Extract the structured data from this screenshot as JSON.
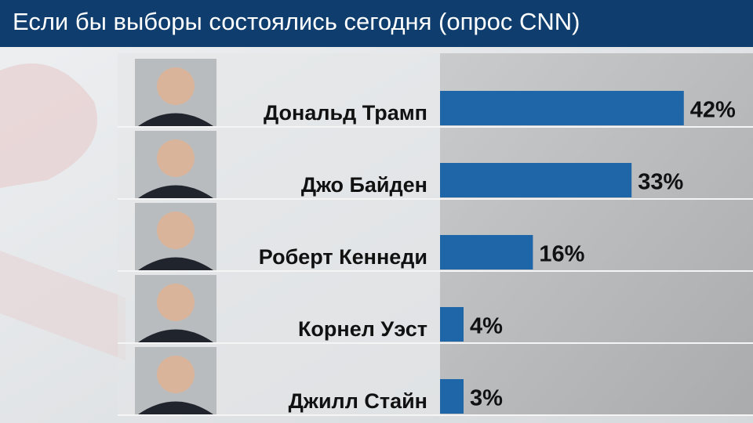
{
  "chart_data": {
    "type": "bar",
    "title": "Если бы выборы состоялись сегодня (опрос CNN)",
    "categories": [
      "Дональд Трамп",
      "Джо Байден",
      "Роберт Кеннеди",
      "Корнел Уэст",
      "Джилл Стайн"
    ],
    "values": [
      42,
      33,
      16,
      4,
      3
    ],
    "value_labels": [
      "42%",
      "33%",
      "16%",
      "4%",
      "3%"
    ],
    "color": "#1f66a8"
  }
}
